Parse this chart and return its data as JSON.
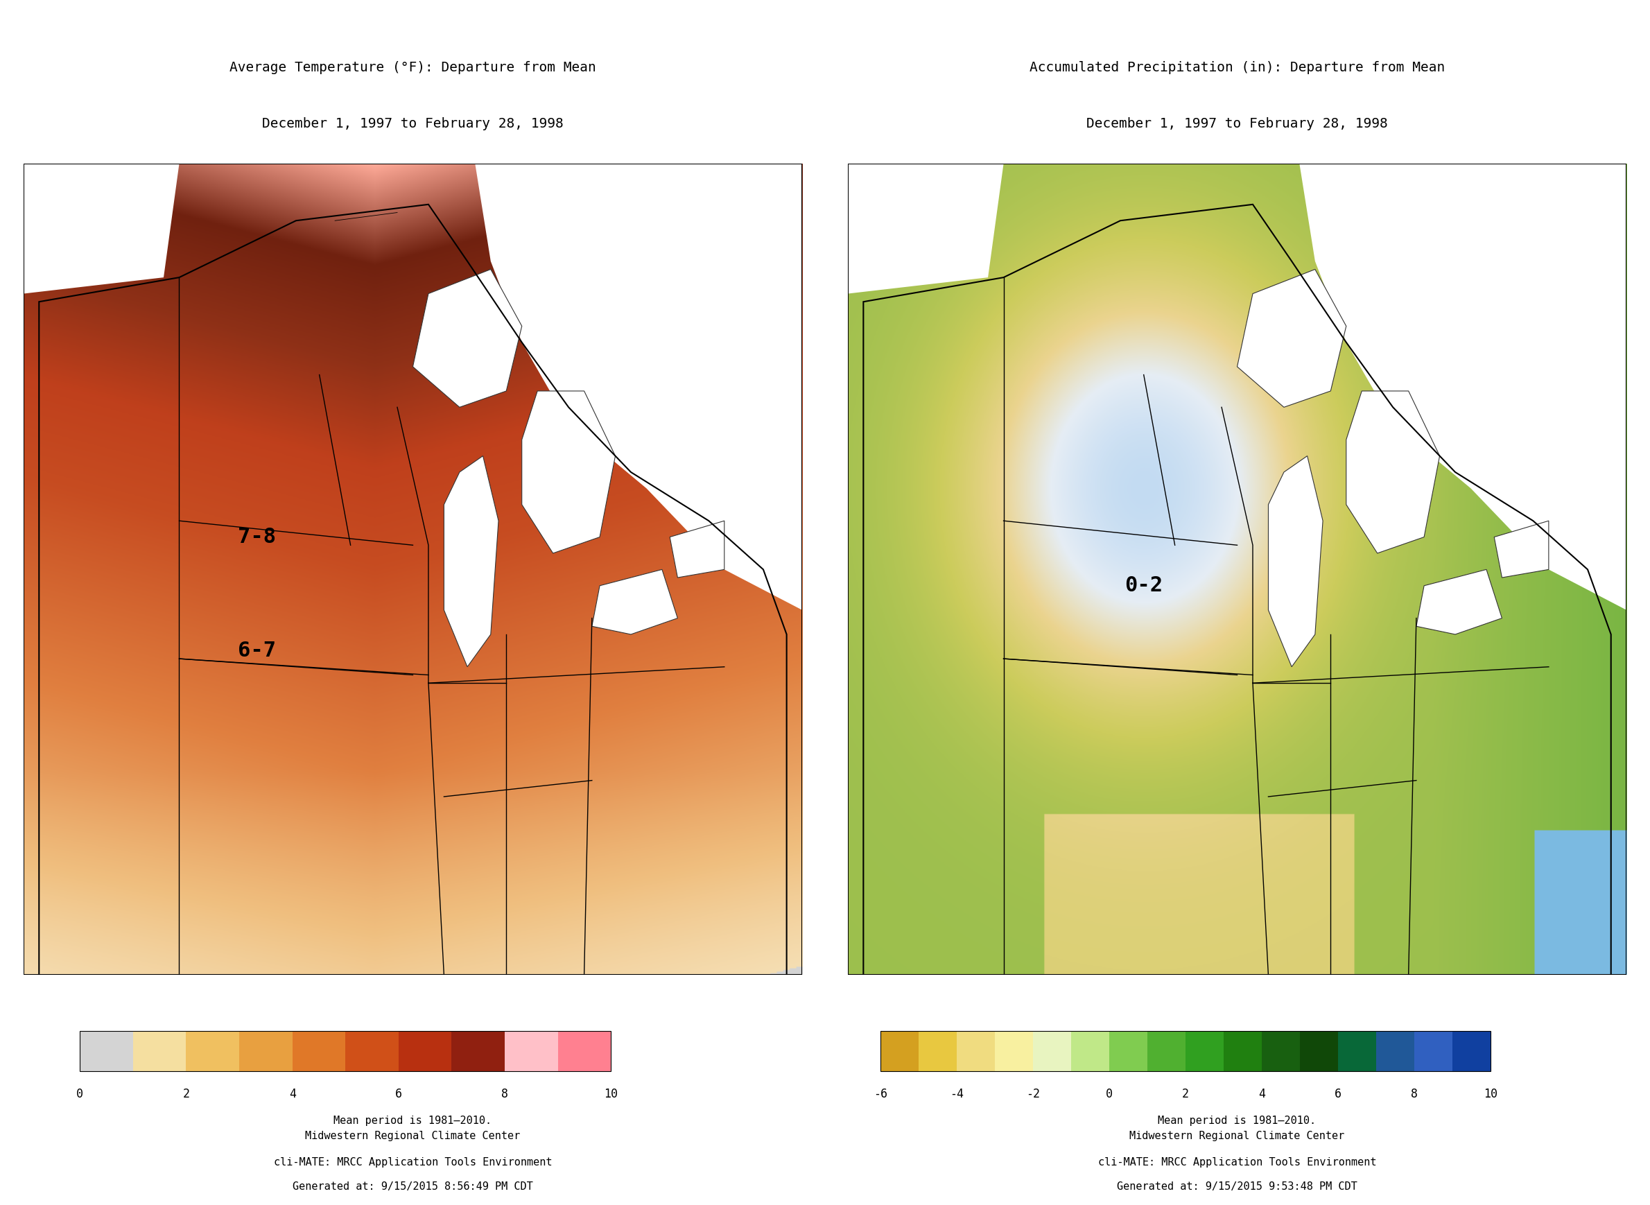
{
  "title_left_line1": "Average Temperature (°F): Departure from Mean",
  "title_left_line2": "December 1, 1997 to February 28, 1998",
  "title_right_line1": "Accumulated Precipitation (in): Departure from Mean",
  "title_right_line2": "December 1, 1997 to February 28, 1998",
  "label_temp": "7-8",
  "label_temp2": "6-7",
  "label_precip": "0-2",
  "mean_period": "Mean period is 1981–2010.",
  "credit_line1": "Midwestern Regional Climate Center",
  "credit_line2": "cli-MATE: MRCC Application Tools Environment",
  "credit_line3_left": "Generated at: 9/15/2015 8:56:49 PM CDT",
  "credit_line3_right": "Generated at: 9/15/2015 9:53:48 PM CDT",
  "temp_colorbar_colors": [
    "#d4d4d4",
    "#f5deb3",
    "#f0c080",
    "#e89040",
    "#d86020",
    "#c04010",
    "#903010",
    "#701000",
    "#ffaaaa",
    "#ff7788"
  ],
  "temp_colorbar_ticks": [
    0,
    2,
    4,
    6,
    8,
    10
  ],
  "precip_colorbar_colors": [
    "#1a6bb5",
    "#5aaad5",
    "#a0d8ef",
    "#d0eef8",
    "#e8f8d0",
    "#b8e090",
    "#70c040",
    "#309830",
    "#e8e060",
    "#d0c020",
    "#b09000",
    "#6060d0"
  ],
  "precip_colorbar_ticks": [
    -6,
    -4,
    -2,
    0,
    2,
    4,
    6,
    8,
    10
  ],
  "background_color": "#ffffff",
  "title_fontsize": 14,
  "label_fontsize": 22,
  "credit_fontsize": 11,
  "mean_period_fontsize": 11
}
